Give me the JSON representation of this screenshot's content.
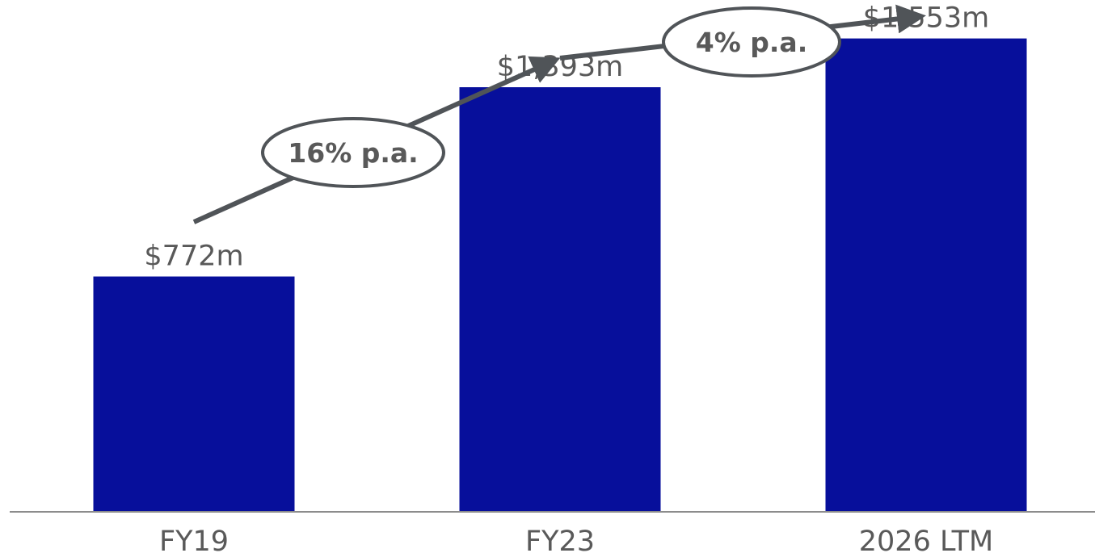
{
  "chart_data": {
    "type": "bar",
    "categories": [
      "FY19",
      "FY23",
      "2026 LTM"
    ],
    "values": [
      772,
      1393,
      1553
    ],
    "value_labels": [
      "$772m",
      "$1,393m",
      "$1,553m"
    ],
    "ylim": [
      0,
      1650
    ],
    "grid": false,
    "colors": {
      "bar": "#070F9B",
      "text": "#595959",
      "arrow": "#505458",
      "axis": "#8C8C8C"
    },
    "annotations": [
      {
        "text": "16% p.a.",
        "from": "FY19",
        "to": "FY23"
      },
      {
        "text": "4% p.a.",
        "from": "FY23",
        "to": "2026 LTM"
      }
    ]
  }
}
